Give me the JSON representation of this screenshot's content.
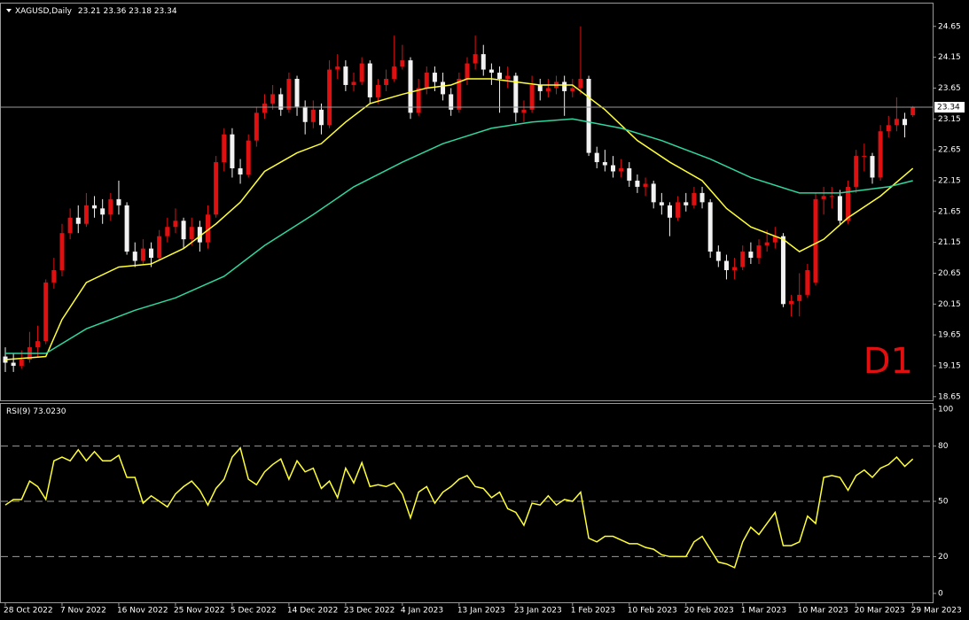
{
  "chart_data": {
    "type": "candlestick",
    "symbol": "XAGUSD,Daily",
    "timeframe_label": "D1",
    "bull_color": "#e01010",
    "bear_color": "#f2f2f2",
    "current_price_line": true,
    "ylim": [
      18.59,
      25.02
    ],
    "yticks": [
      18.65,
      19.15,
      19.65,
      20.15,
      20.65,
      21.15,
      21.65,
      22.15,
      22.65,
      23.15,
      23.65,
      24.15,
      24.65
    ],
    "xticks": [
      {
        "value": 0,
        "label": "28 Oct 2022"
      },
      {
        "value": 7,
        "label": "7 Nov 2022"
      },
      {
        "value": 14,
        "label": "16 Nov 2022"
      },
      {
        "value": 21,
        "label": "25 Nov 2022"
      },
      {
        "value": 28,
        "label": "5 Dec 2022"
      },
      {
        "value": 35,
        "label": "14 Dec 2022"
      },
      {
        "value": 42,
        "label": "23 Dec 2022"
      },
      {
        "value": 49,
        "label": "4 Jan 2023"
      },
      {
        "value": 56,
        "label": "13 Jan 2023"
      },
      {
        "value": 63,
        "label": "23 Jan 2023"
      },
      {
        "value": 70,
        "label": "1 Feb 2023"
      },
      {
        "value": 77,
        "label": "10 Feb 2023"
      },
      {
        "value": 84,
        "label": "20 Feb 2023"
      },
      {
        "value": 91,
        "label": "1 Mar 2023"
      },
      {
        "value": 98,
        "label": "10 Mar 2023"
      },
      {
        "value": 105,
        "label": "20 Mar 2023"
      },
      {
        "value": 112,
        "label": "29 Mar 2023"
      }
    ],
    "ohlc": [
      [
        19.3,
        19.45,
        19.05,
        19.2
      ],
      [
        19.2,
        19.35,
        19.05,
        19.15
      ],
      [
        19.15,
        19.4,
        19.1,
        19.25
      ],
      [
        19.25,
        19.7,
        19.2,
        19.45
      ],
      [
        19.45,
        19.8,
        19.3,
        19.55
      ],
      [
        19.55,
        20.55,
        19.5,
        20.5
      ],
      [
        20.5,
        20.9,
        20.4,
        20.7
      ],
      [
        20.7,
        21.45,
        20.6,
        21.3
      ],
      [
        21.3,
        21.7,
        21.2,
        21.55
      ],
      [
        21.55,
        21.75,
        21.3,
        21.45
      ],
      [
        21.45,
        21.95,
        21.4,
        21.75
      ],
      [
        21.75,
        21.9,
        21.55,
        21.7
      ],
      [
        21.7,
        21.85,
        21.45,
        21.6
      ],
      [
        21.6,
        21.95,
        21.5,
        21.85
      ],
      [
        21.85,
        22.15,
        21.6,
        21.75
      ],
      [
        21.75,
        21.8,
        20.95,
        21.0
      ],
      [
        21.0,
        21.15,
        20.75,
        20.85
      ],
      [
        20.85,
        21.2,
        20.8,
        21.05
      ],
      [
        21.05,
        21.15,
        20.75,
        20.9
      ],
      [
        20.9,
        21.35,
        20.85,
        21.25
      ],
      [
        21.25,
        21.55,
        21.15,
        21.4
      ],
      [
        21.4,
        21.7,
        21.3,
        21.5
      ],
      [
        21.5,
        21.55,
        21.05,
        21.2
      ],
      [
        21.2,
        21.55,
        21.1,
        21.4
      ],
      [
        21.4,
        21.5,
        21.0,
        21.15
      ],
      [
        21.15,
        21.75,
        21.05,
        21.6
      ],
      [
        21.6,
        22.55,
        21.55,
        22.45
      ],
      [
        22.45,
        23.0,
        22.3,
        22.9
      ],
      [
        22.9,
        23.0,
        22.2,
        22.35
      ],
      [
        22.35,
        22.5,
        22.1,
        22.25
      ],
      [
        22.25,
        22.9,
        22.2,
        22.8
      ],
      [
        22.8,
        23.35,
        22.7,
        23.25
      ],
      [
        23.25,
        23.55,
        23.15,
        23.4
      ],
      [
        23.4,
        23.7,
        23.3,
        23.55
      ],
      [
        23.55,
        23.65,
        23.2,
        23.3
      ],
      [
        23.3,
        23.9,
        23.25,
        23.8
      ],
      [
        23.8,
        23.85,
        23.2,
        23.35
      ],
      [
        23.35,
        23.45,
        22.9,
        23.1
      ],
      [
        23.1,
        23.45,
        23.0,
        23.3
      ],
      [
        23.3,
        23.4,
        22.9,
        23.05
      ],
      [
        23.05,
        24.1,
        23.0,
        23.95
      ],
      [
        23.95,
        24.2,
        23.8,
        24.0
      ],
      [
        24.0,
        24.1,
        23.6,
        23.7
      ],
      [
        23.7,
        23.9,
        23.6,
        23.75
      ],
      [
        23.75,
        24.15,
        23.7,
        24.05
      ],
      [
        24.05,
        24.1,
        23.4,
        23.5
      ],
      [
        23.5,
        23.8,
        23.4,
        23.7
      ],
      [
        23.7,
        23.95,
        23.6,
        23.8
      ],
      [
        23.8,
        24.5,
        23.75,
        24.0
      ],
      [
        24.0,
        24.35,
        23.95,
        24.1
      ],
      [
        24.1,
        24.15,
        23.15,
        23.25
      ],
      [
        23.25,
        23.8,
        23.2,
        23.65
      ],
      [
        23.65,
        24.0,
        23.55,
        23.9
      ],
      [
        23.9,
        24.0,
        23.6,
        23.75
      ],
      [
        23.75,
        23.9,
        23.45,
        23.55
      ],
      [
        23.55,
        23.65,
        23.2,
        23.3
      ],
      [
        23.3,
        23.9,
        23.25,
        23.8
      ],
      [
        23.8,
        24.15,
        23.7,
        24.05
      ],
      [
        24.05,
        24.5,
        23.95,
        24.2
      ],
      [
        24.2,
        24.35,
        23.85,
        23.95
      ],
      [
        23.95,
        24.05,
        23.7,
        23.9
      ],
      [
        23.9,
        24.0,
        23.25,
        23.8
      ],
      [
        23.8,
        24.0,
        23.65,
        23.85
      ],
      [
        23.85,
        23.9,
        23.1,
        23.25
      ],
      [
        23.25,
        23.45,
        23.1,
        23.3
      ],
      [
        23.3,
        23.85,
        23.25,
        23.7
      ],
      [
        23.7,
        23.8,
        23.45,
        23.6
      ],
      [
        23.6,
        23.8,
        23.5,
        23.65
      ],
      [
        23.65,
        23.85,
        23.55,
        23.75
      ],
      [
        23.75,
        23.85,
        23.2,
        23.6
      ],
      [
        23.6,
        23.8,
        23.5,
        23.65
      ],
      [
        23.65,
        24.65,
        23.55,
        23.8
      ],
      [
        23.8,
        23.85,
        22.55,
        22.6
      ],
      [
        22.6,
        22.7,
        22.35,
        22.45
      ],
      [
        22.45,
        22.65,
        22.3,
        22.4
      ],
      [
        22.4,
        22.55,
        22.2,
        22.3
      ],
      [
        22.3,
        22.5,
        22.2,
        22.35
      ],
      [
        22.35,
        22.45,
        22.05,
        22.15
      ],
      [
        22.15,
        22.25,
        21.95,
        22.05
      ],
      [
        22.05,
        22.2,
        21.9,
        22.1
      ],
      [
        22.1,
        22.15,
        21.7,
        21.8
      ],
      [
        21.8,
        21.95,
        21.6,
        21.75
      ],
      [
        21.75,
        21.8,
        21.25,
        21.55
      ],
      [
        21.55,
        21.9,
        21.5,
        21.8
      ],
      [
        21.8,
        21.95,
        21.65,
        21.75
      ],
      [
        21.75,
        22.05,
        21.7,
        21.95
      ],
      [
        21.95,
        22.05,
        21.7,
        21.8
      ],
      [
        21.8,
        21.85,
        20.9,
        21.0
      ],
      [
        21.0,
        21.1,
        20.75,
        20.85
      ],
      [
        20.85,
        20.95,
        20.55,
        20.7
      ],
      [
        20.7,
        20.9,
        20.55,
        20.75
      ],
      [
        20.75,
        21.1,
        20.7,
        21.0
      ],
      [
        21.0,
        21.15,
        20.8,
        20.9
      ],
      [
        20.9,
        21.2,
        20.8,
        21.1
      ],
      [
        21.1,
        21.35,
        21.0,
        21.15
      ],
      [
        21.15,
        21.4,
        21.05,
        21.25
      ],
      [
        21.25,
        21.3,
        20.1,
        20.15
      ],
      [
        20.15,
        20.3,
        19.95,
        20.2
      ],
      [
        20.2,
        20.65,
        19.95,
        20.3
      ],
      [
        20.3,
        20.8,
        20.25,
        20.7
      ],
      [
        20.5,
        21.95,
        20.45,
        21.85
      ],
      [
        21.85,
        22.05,
        21.6,
        21.9
      ],
      [
        21.9,
        22.05,
        21.7,
        21.9
      ],
      [
        21.9,
        22.0,
        21.45,
        21.5
      ],
      [
        21.5,
        22.15,
        21.45,
        22.05
      ],
      [
        22.05,
        22.65,
        21.95,
        22.55
      ],
      [
        22.55,
        22.75,
        22.3,
        22.55
      ],
      [
        22.55,
        22.6,
        22.1,
        22.2
      ],
      [
        22.2,
        23.05,
        22.15,
        22.95
      ],
      [
        22.95,
        23.2,
        22.85,
        23.05
      ],
      [
        23.05,
        23.5,
        22.95,
        23.15
      ],
      [
        23.15,
        23.25,
        22.85,
        23.05
      ],
      [
        23.21,
        23.36,
        23.18,
        23.34
      ]
    ],
    "moving_averages": [
      {
        "color": "#ffff33",
        "x": [
          0,
          5,
          7,
          10,
          14,
          18,
          22,
          26,
          29,
          32,
          36,
          39,
          42,
          45,
          49,
          52,
          55,
          57,
          60,
          63,
          66,
          70,
          74,
          78,
          82,
          86,
          89,
          92,
          96,
          98,
          101,
          104,
          108,
          112
        ],
        "values": [
          19.25,
          19.3,
          19.9,
          20.5,
          20.75,
          20.8,
          21.05,
          21.45,
          21.8,
          22.3,
          22.6,
          22.75,
          23.1,
          23.4,
          23.55,
          23.65,
          23.7,
          23.8,
          23.8,
          23.75,
          23.7,
          23.7,
          23.3,
          22.8,
          22.45,
          22.15,
          21.7,
          21.4,
          21.2,
          21.0,
          21.2,
          21.55,
          21.9,
          22.35
        ]
      },
      {
        "color": "#2fd69f",
        "x": [
          0,
          5,
          10,
          16,
          21,
          27,
          32,
          38,
          43,
          49,
          54,
          60,
          65,
          70,
          76,
          81,
          87,
          92,
          98,
          103,
          109,
          112
        ],
        "values": [
          19.35,
          19.35,
          19.75,
          20.05,
          20.25,
          20.6,
          21.1,
          21.6,
          22.05,
          22.45,
          22.75,
          23.0,
          23.1,
          23.15,
          23.0,
          22.8,
          22.5,
          22.2,
          21.95,
          21.95,
          22.05,
          22.15
        ]
      }
    ],
    "rsi": {
      "name": "RSI(9)",
      "value_label": "73.0230",
      "color": "#ffff33",
      "ylim": [
        -4.8,
        102.9
      ],
      "yticks": [
        0,
        20,
        50,
        80,
        100
      ],
      "levels": [
        20,
        50,
        80
      ],
      "values": [
        48,
        51,
        51,
        61,
        58,
        51,
        72,
        74,
        72,
        78,
        72,
        77,
        72,
        72,
        75,
        63,
        63,
        49,
        53,
        50,
        47,
        54,
        58,
        61,
        56,
        48,
        57,
        62,
        74,
        79,
        62,
        59,
        66,
        70,
        73,
        62,
        72,
        66,
        68,
        57,
        61,
        52,
        68,
        60,
        71,
        58,
        59,
        58,
        60,
        54,
        41,
        55,
        58,
        49,
        55,
        58,
        62,
        64,
        58,
        57,
        52,
        55,
        46,
        44,
        37,
        49,
        48,
        53,
        48,
        51,
        50,
        55,
        30,
        28,
        31,
        31,
        29,
        27,
        27,
        25,
        24,
        21,
        20,
        20,
        20,
        28,
        31,
        24,
        17,
        16,
        14,
        28,
        36,
        32,
        38,
        44,
        26,
        26,
        28,
        42,
        38,
        63,
        64,
        63,
        56,
        64,
        67,
        63,
        68,
        70,
        74,
        69,
        73.023
      ]
    }
  }
}
